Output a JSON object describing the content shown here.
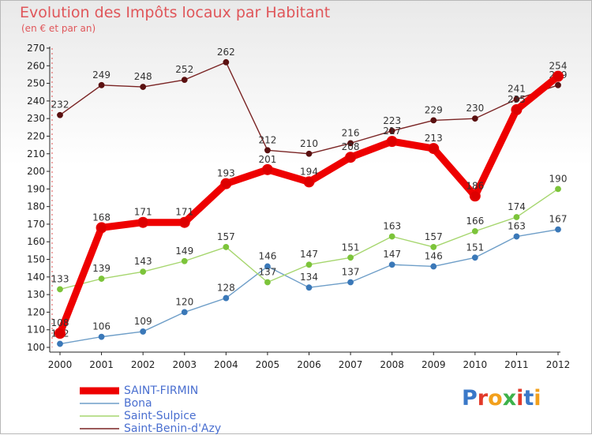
{
  "header": {
    "title": "Evolution des Impôts locaux par Habitant",
    "subtitle": "(en € et par an)"
  },
  "brand": {
    "text": "Proxiti",
    "letter_colors": [
      "#3a78c8",
      "#e23a2a",
      "#f2a01c",
      "#3db24a",
      "#e23a2a",
      "#3a78c8",
      "#f2a01c"
    ]
  },
  "chart_data": {
    "type": "line",
    "x": [
      "2000",
      "2001",
      "2002",
      "2003",
      "2004",
      "2005",
      "2006",
      "2007",
      "2008",
      "2009",
      "2010",
      "2011",
      "2012"
    ],
    "ylim": [
      100,
      270
    ],
    "yticks": [
      100,
      110,
      120,
      130,
      140,
      150,
      160,
      170,
      180,
      190,
      200,
      210,
      220,
      230,
      240,
      250,
      260,
      270
    ],
    "grid": false,
    "legend_position": "bottom-left",
    "series": [
      {
        "name": "Saint-Benin-d'Azy",
        "color": "#7a2424",
        "marker": "#5a1010",
        "width": "thin",
        "values": [
          232,
          249,
          248,
          252,
          262,
          212,
          210,
          216,
          223,
          229,
          230,
          241,
          249
        ],
        "labels": [
          "232",
          "249",
          "248",
          "252",
          "262",
          "212",
          "210",
          "216",
          "223",
          "229",
          "230",
          "241",
          "249"
        ]
      },
      {
        "name": "Bona",
        "color": "#6e9ec8",
        "marker": "#3a78b8",
        "width": "thin",
        "values": [
          102,
          106,
          109,
          120,
          128,
          146,
          134,
          137,
          147,
          146,
          151,
          163,
          167
        ],
        "labels": [
          "102",
          "106",
          "109",
          "120",
          "128",
          "146",
          "134",
          "137",
          "147",
          "146",
          "151",
          "163",
          "167"
        ]
      },
      {
        "name": "Saint-Sulpice",
        "color": "#a6d66e",
        "marker": "#7cc43a",
        "width": "thin",
        "values": [
          133,
          139,
          143,
          149,
          157,
          137,
          147,
          151,
          163,
          157,
          166,
          174,
          190
        ],
        "labels": [
          "133",
          "139",
          "143",
          "149",
          "157",
          "137",
          "147",
          "151",
          "163",
          "157",
          "166",
          "174",
          "190"
        ]
      },
      {
        "name": "SAINT-FIRMIN",
        "color": "#ee0000",
        "marker": "#dd0000",
        "width": "thick",
        "values": [
          108,
          168,
          171,
          171,
          193,
          201,
          194,
          208,
          217,
          213,
          186,
          235,
          254
        ],
        "labels": [
          "108",
          "168",
          "171",
          "171",
          "193",
          "201",
          "194",
          "208",
          "217",
          "213",
          "186",
          "235",
          "254"
        ]
      }
    ],
    "legend": [
      {
        "name": "SAINT-FIRMIN",
        "color": "#ee0000",
        "width": "thick"
      },
      {
        "name": "Bona",
        "color": "#6e9ec8",
        "width": "thin"
      },
      {
        "name": "Saint-Sulpice",
        "color": "#a6d66e",
        "width": "thin"
      },
      {
        "name": "Saint-Benin-d'Azy",
        "color": "#7a2424",
        "width": "thin"
      }
    ]
  }
}
